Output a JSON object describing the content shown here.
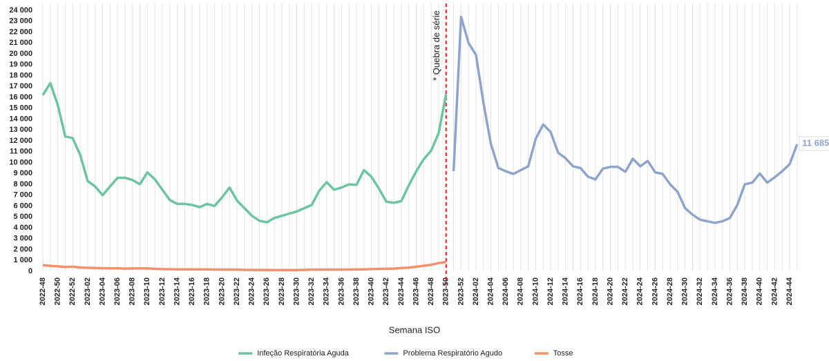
{
  "chart_data": {
    "type": "line",
    "x_label": "Semana ISO",
    "categories": [
      "2022-48",
      null,
      "2022-50",
      null,
      "2022-52",
      null,
      "2023-02",
      null,
      "2023-04",
      null,
      "2023-06",
      null,
      "2023-08",
      null,
      "2023-10",
      null,
      "2023-12",
      null,
      "2023-14",
      null,
      "2023-16",
      null,
      "2023-18",
      null,
      "2023-20",
      null,
      "2023-22",
      null,
      "2023-24",
      null,
      "2023-26",
      null,
      "2023-28",
      null,
      "2023-30",
      null,
      "2023-32",
      null,
      "2023-34",
      null,
      "2023-36",
      null,
      "2023-38",
      null,
      "2023-40",
      null,
      "2023-42",
      null,
      "2023-44",
      null,
      "2023-46",
      null,
      "2023-48",
      null,
      "2023-50",
      null,
      "2023-52",
      null,
      "2024-02",
      null,
      "2024-04",
      null,
      "2024-06",
      null,
      "2024-08",
      null,
      "2024-10",
      null,
      "2024-12",
      null,
      "2024-14",
      null,
      "2024-16",
      null,
      "2024-18",
      null,
      "2024-20",
      null,
      "2024-22",
      null,
      "2024-24",
      null,
      "2024-26",
      null,
      "2024-28",
      null,
      "2024-30",
      null,
      "2024-32",
      null,
      "2024-34",
      null,
      "2024-36",
      null,
      "2024-38",
      null,
      "2024-40",
      null,
      "2024-42",
      null,
      "2024-44",
      null
    ],
    "series": [
      {
        "name": "Infeção Respiratória Aguda",
        "color": "#6cc4a0",
        "values": [
          16200,
          17300,
          15300,
          12400,
          12250,
          10700,
          8300,
          7800,
          7000,
          7800,
          8600,
          8600,
          8400,
          8000,
          9100,
          8450,
          7500,
          6550,
          6200,
          6200,
          6100,
          5900,
          6200,
          6000,
          6800,
          7700,
          6500,
          5800,
          5100,
          4650,
          4500,
          4900,
          5100,
          5300,
          5500,
          5800,
          6100,
          7400,
          8200,
          7500,
          7700,
          8000,
          7950,
          9300,
          8700,
          7600,
          6400,
          6300,
          6450,
          7900,
          9200,
          10300,
          11100,
          12700,
          16300,
          null,
          null,
          null,
          null,
          null,
          null,
          null,
          null,
          null,
          null,
          null,
          null,
          null,
          null,
          null,
          null,
          null,
          null,
          null,
          null,
          null,
          null,
          null,
          null,
          null,
          null,
          null,
          null,
          null,
          null,
          null,
          null,
          null,
          null,
          null,
          null,
          null,
          null,
          null,
          null,
          null,
          null,
          null,
          null,
          null,
          null,
          null
        ]
      },
      {
        "name": "Problema Respiratório Agudo",
        "color": "#8fa4cc",
        "values": [
          null,
          null,
          null,
          null,
          null,
          null,
          null,
          null,
          null,
          null,
          null,
          null,
          null,
          null,
          null,
          null,
          null,
          null,
          null,
          null,
          null,
          null,
          null,
          null,
          null,
          null,
          null,
          null,
          null,
          null,
          null,
          null,
          null,
          null,
          null,
          null,
          null,
          null,
          null,
          null,
          null,
          null,
          null,
          null,
          null,
          null,
          null,
          null,
          null,
          null,
          null,
          null,
          null,
          null,
          null,
          9200,
          23400,
          21000,
          19900,
          15500,
          11700,
          9500,
          9200,
          8950,
          9300,
          9650,
          12200,
          13500,
          12800,
          10900,
          10400,
          9650,
          9500,
          8700,
          8450,
          9450,
          9600,
          9600,
          9150,
          10350,
          9650,
          10150,
          9100,
          8950,
          8000,
          7300,
          5800,
          5200,
          4750,
          4600,
          4450,
          4600,
          4900,
          6100,
          8000,
          8150,
          9000,
          8150,
          8650,
          9200,
          9850,
          11685
        ],
        "value_labels": [
          null,
          null,
          null,
          null,
          null,
          null,
          null,
          null,
          null,
          null,
          null,
          null,
          null,
          null,
          null,
          null,
          null,
          null,
          null,
          null,
          null,
          null,
          null,
          null,
          null,
          null,
          null,
          null,
          null,
          null,
          null,
          null,
          null,
          null,
          null,
          null,
          null,
          null,
          null,
          null,
          null,
          null,
          null,
          null,
          null,
          null,
          null,
          null,
          null,
          null,
          null,
          null,
          null,
          null,
          null,
          null,
          null,
          null,
          null,
          null,
          null,
          null,
          null,
          null,
          null,
          null,
          null,
          null,
          null,
          null,
          null,
          null,
          null,
          null,
          null,
          null,
          null,
          null,
          null,
          null,
          null,
          null,
          null,
          null,
          null,
          null,
          null,
          null,
          null,
          null,
          null,
          null,
          null,
          null,
          null,
          null,
          null,
          null,
          null,
          null,
          null,
          "11 685"
        ]
      },
      {
        "name": "Tosse",
        "color": "#f4906a",
        "values": [
          550,
          500,
          450,
          400,
          420,
          350,
          320,
          300,
          280,
          270,
          280,
          250,
          260,
          260,
          270,
          220,
          200,
          190,
          180,
          170,
          170,
          170,
          170,
          160,
          150,
          150,
          150,
          130,
          130,
          120,
          120,
          110,
          110,
          110,
          110,
          130,
          150,
          150,
          150,
          150,
          150,
          160,
          170,
          180,
          200,
          220,
          230,
          250,
          300,
          330,
          420,
          500,
          600,
          750,
          850,
          null,
          null,
          null,
          null,
          null,
          null,
          null,
          null,
          null,
          null,
          null,
          null,
          null,
          null,
          null,
          null,
          null,
          null,
          null,
          null,
          null,
          null,
          null,
          null,
          null,
          null,
          null,
          null,
          null,
          null,
          null,
          null,
          null,
          null,
          null,
          null,
          null,
          null,
          null,
          null,
          null,
          null,
          null,
          null,
          null,
          null,
          null
        ]
      }
    ],
    "ylim": [
      0,
      24000
    ],
    "yticks": [
      {
        "value": 0,
        "label": "0"
      },
      {
        "value": 1000,
        "label": "1 000"
      },
      {
        "value": 2000,
        "label": "2 000"
      },
      {
        "value": 3000,
        "label": "3 000"
      },
      {
        "value": 4000,
        "label": "4 000"
      },
      {
        "value": 5000,
        "label": "5 000"
      },
      {
        "value": 6000,
        "label": "6 000"
      },
      {
        "value": 7000,
        "label": "7 000"
      },
      {
        "value": 8000,
        "label": "8 000"
      },
      {
        "value": 9000,
        "label": "9 000"
      },
      {
        "value": 10000,
        "label": "10 000"
      },
      {
        "value": 11000,
        "label": "11 000"
      },
      {
        "value": 12000,
        "label": "12 000"
      },
      {
        "value": 13000,
        "label": "13 000"
      },
      {
        "value": 14000,
        "label": "14 000"
      },
      {
        "value": 15000,
        "label": "15 000"
      },
      {
        "value": 16000,
        "label": "16 000"
      },
      {
        "value": 17000,
        "label": "17 000"
      },
      {
        "value": 18000,
        "label": "18 000"
      },
      {
        "value": 19000,
        "label": "19 000"
      },
      {
        "value": 20000,
        "label": "20 000"
      },
      {
        "value": 21000,
        "label": "21 000"
      },
      {
        "value": 22000,
        "label": "22 000"
      },
      {
        "value": 23000,
        "label": "23 000"
      },
      {
        "value": 24000,
        "label": "24 000"
      }
    ],
    "grid": true,
    "legend": "bottom",
    "annotation": {
      "text": "* Quebra de série",
      "x": "2023-50",
      "color": "#e0202a"
    }
  }
}
